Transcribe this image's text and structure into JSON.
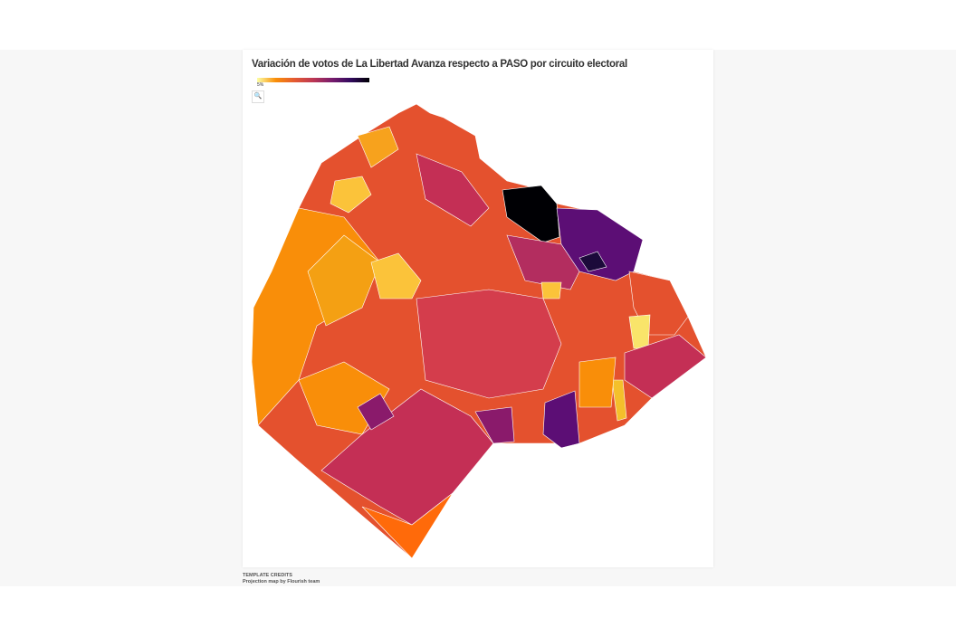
{
  "header": {
    "title": "Variación de votos de La Libertad Avanza respecto a PASO por circuito electoral"
  },
  "legend": {
    "label": "5%"
  },
  "footer": {
    "heading": "TEMPLATE CREDITS",
    "credit": "Projection map by Flourish team"
  }
}
